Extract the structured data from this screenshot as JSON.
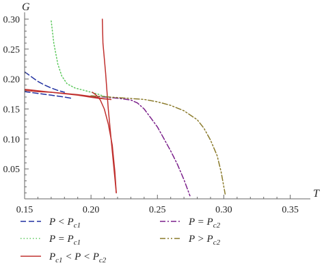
{
  "chart_data": {
    "type": "line",
    "xlabel": "T",
    "ylabel": "G",
    "xlim": [
      0.15,
      0.36
    ],
    "ylim": [
      0,
      0.3
    ],
    "x_ticks": [
      "0.15",
      "0.20",
      "0.25",
      "0.30",
      "0.35"
    ],
    "y_ticks": [
      "0.05",
      "0.10",
      "0.15",
      "0.20",
      "0.25",
      "0.30"
    ],
    "grid": false,
    "legend_position": "bottom",
    "series": [
      {
        "name": "P < Pc1",
        "legend": {
          "pre": "P < P",
          "sub": "c1"
        },
        "color": "#1f2fa0",
        "dash": "dashed",
        "segments": [
          [
            [
              0.15,
              0.212
            ],
            [
              0.155,
              0.204
            ],
            [
              0.16,
              0.196
            ],
            [
              0.165,
              0.19
            ],
            [
              0.17,
              0.185
            ],
            [
              0.175,
              0.181
            ],
            [
              0.18,
              0.178
            ]
          ],
          [
            [
              0.15,
              0.179
            ],
            [
              0.16,
              0.176
            ],
            [
              0.17,
              0.173
            ],
            [
              0.18,
              0.17
            ],
            [
              0.185,
              0.168
            ]
          ]
        ]
      },
      {
        "name": "P = Pc1",
        "legend": {
          "pre": "P = P",
          "sub": "c1"
        },
        "color": "#5cc85c",
        "dash": "dotted",
        "segments": [
          [
            [
              0.17,
              0.297
            ],
            [
              0.172,
              0.26
            ],
            [
              0.175,
              0.225
            ],
            [
              0.178,
              0.205
            ],
            [
              0.182,
              0.192
            ],
            [
              0.188,
              0.185
            ],
            [
              0.195,
              0.181
            ],
            [
              0.2,
              0.178
            ],
            [
              0.205,
              0.175
            ],
            [
              0.21,
              0.171
            ],
            [
              0.215,
              0.169
            ],
            [
              0.22,
              0.168
            ]
          ]
        ]
      },
      {
        "name": "Pc1 < P < Pc2",
        "legend": {
          "pre": "P",
          "sub1": "c1",
          "mid": " < P < P",
          "sub2": "c2"
        },
        "color": "#c0302e",
        "dash": "solid",
        "segments": [
          [
            [
              0.15,
              0.181
            ],
            [
              0.16,
              0.179
            ],
            [
              0.17,
              0.178
            ],
            [
              0.18,
              0.176
            ],
            [
              0.19,
              0.174
            ],
            [
              0.2,
              0.171
            ],
            [
              0.21,
              0.167
            ],
            [
              0.215,
              0.166
            ]
          ],
          [
            [
              0.15,
              0.183
            ],
            [
              0.17,
              0.178
            ],
            [
              0.19,
              0.173
            ],
            [
              0.205,
              0.168
            ],
            [
              0.215,
              0.166
            ]
          ],
          [
            [
              0.201,
              0.178
            ],
            [
              0.204,
              0.173
            ],
            [
              0.207,
              0.165
            ],
            [
              0.21,
              0.15
            ],
            [
              0.213,
              0.125
            ],
            [
              0.216,
              0.09
            ],
            [
              0.218,
              0.045
            ],
            [
              0.219,
              0.01
            ]
          ],
          [
            [
              0.219,
              0.01
            ],
            [
              0.216,
              0.08
            ],
            [
              0.213,
              0.15
            ],
            [
              0.211,
              0.21
            ],
            [
              0.209,
              0.26
            ],
            [
              0.2085,
              0.3
            ]
          ]
        ]
      },
      {
        "name": "P = Pc2",
        "legend": {
          "pre": "P = P",
          "sub": "c2"
        },
        "color": "#7a1f8a",
        "dash": "dashdot",
        "segments": [
          [
            [
              0.2,
              0.172
            ],
            [
              0.21,
              0.17
            ],
            [
              0.22,
              0.168
            ],
            [
              0.23,
              0.165
            ],
            [
              0.235,
              0.16
            ],
            [
              0.24,
              0.15
            ],
            [
              0.245,
              0.135
            ],
            [
              0.25,
              0.12
            ],
            [
              0.255,
              0.1
            ],
            [
              0.26,
              0.08
            ],
            [
              0.265,
              0.058
            ],
            [
              0.27,
              0.032
            ],
            [
              0.2745,
              0.005
            ]
          ]
        ]
      },
      {
        "name": "P > Pc2",
        "legend": {
          "pre": "P > P",
          "sub": "c2"
        },
        "color": "#8a7a2a",
        "dash": "dashdotdot",
        "segments": [
          [
            [
              0.2,
              0.172
            ],
            [
              0.22,
              0.169
            ],
            [
              0.24,
              0.166
            ],
            [
              0.25,
              0.162
            ],
            [
              0.26,
              0.156
            ],
            [
              0.27,
              0.147
            ],
            [
              0.28,
              0.132
            ],
            [
              0.285,
              0.118
            ],
            [
              0.29,
              0.098
            ],
            [
              0.295,
              0.072
            ],
            [
              0.298,
              0.045
            ],
            [
              0.301,
              0.008
            ]
          ]
        ]
      }
    ]
  }
}
